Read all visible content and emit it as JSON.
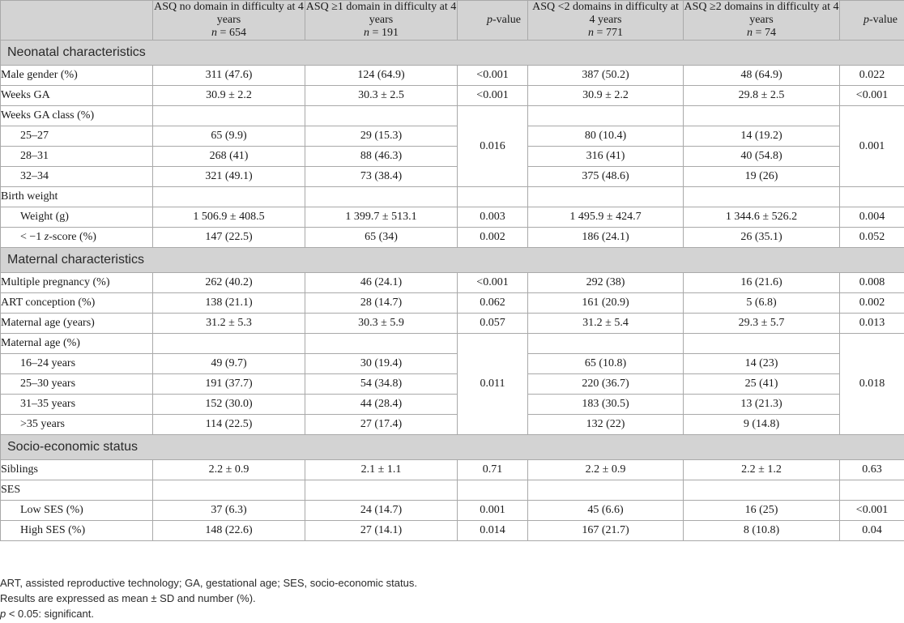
{
  "header": {
    "col_label": "",
    "g1": {
      "line1": "ASQ no domain in difficulty at 4 years",
      "n_label": "n",
      "n_value": " = 654"
    },
    "g2": {
      "line1": "ASQ ≥1 domain in difficulty at 4 years",
      "n_label": "n",
      "n_value": " = 191"
    },
    "p1": {
      "italic": "p",
      "rest": "-value"
    },
    "g3": {
      "line1": "ASQ <2 domains in difficulty at 4 years",
      "n_label": "n",
      "n_value": " = 771"
    },
    "g4": {
      "line1": "ASQ ≥2 domains in difficulty at 4 years",
      "n_label": "n",
      "n_value": " = 74"
    },
    "p2": {
      "italic": "p",
      "rest": "-value"
    }
  },
  "sections": {
    "neonatal": "Neonatal characteristics",
    "maternal": "Maternal characteristics",
    "ses": "Socio-economic status"
  },
  "rows": {
    "male": {
      "label": "Male gender (%)",
      "v": [
        "311 (47.6)",
        "124 (64.9)",
        "<0.001",
        "387 (50.2)",
        "48 (64.9)",
        "0.022"
      ]
    },
    "weeks_ga": {
      "label": "Weeks GA",
      "v": [
        "30.9 ± 2.2",
        "30.3 ± 2.5",
        "<0.001",
        "30.9 ± 2.2",
        "29.8 ± 2.5",
        "<0.001"
      ]
    },
    "ga_class": {
      "label": "Weeks GA class (%)",
      "p1": "0.016",
      "p2": "0.001"
    },
    "ga_25": {
      "label": "25–27",
      "v": [
        "65 (9.9)",
        "29 (15.3)",
        "80 (10.4)",
        "14 (19.2)"
      ]
    },
    "ga_28": {
      "label": "28–31",
      "v": [
        "268 (41)",
        "88 (46.3)",
        "316 (41)",
        "40 (54.8)"
      ]
    },
    "ga_32": {
      "label": "32–34",
      "v": [
        "321 (49.1)",
        "73 (38.4)",
        "375 (48.6)",
        "19 (26)"
      ]
    },
    "bw": {
      "label": "Birth weight"
    },
    "weight": {
      "label": "Weight (g)",
      "v": [
        "1 506.9 ± 408.5",
        "1 399.7 ± 513.1",
        "0.003",
        "1 495.9 ± 424.7",
        "1 344.6 ± 526.2",
        "0.004"
      ]
    },
    "zscore": {
      "label_pre": "< −1 ",
      "label_italic": "z",
      "label_post": "-score (%)",
      "v": [
        "147 (22.5)",
        "65 (34)",
        "0.002",
        "186 (24.1)",
        "26 (35.1)",
        "0.052"
      ]
    },
    "multiple": {
      "label": "Multiple pregnancy (%)",
      "v": [
        "262 (40.2)",
        "46 (24.1)",
        "<0.001",
        "292 (38)",
        "16 (21.6)",
        "0.008"
      ]
    },
    "art": {
      "label": "ART conception (%)",
      "v": [
        "138 (21.1)",
        "28 (14.7)",
        "0.062",
        "161 (20.9)",
        "5 (6.8)",
        "0.002"
      ]
    },
    "mat_age_y": {
      "label": "Maternal age (years)",
      "v": [
        "31.2 ± 5.3",
        "30.3 ± 5.9",
        "0.057",
        "31.2 ± 5.4",
        "29.3 ± 5.7",
        "0.013"
      ]
    },
    "mat_age_pct": {
      "label": "Maternal age (%)",
      "p1": "0.011",
      "p2": "0.018"
    },
    "age_16": {
      "label": "16–24 years",
      "v": [
        "49 (9.7)",
        "30 (19.4)",
        "65 (10.8)",
        "14 (23)"
      ]
    },
    "age_25": {
      "label": "25–30 years",
      "v": [
        "191 (37.7)",
        "54 (34.8)",
        "220 (36.7)",
        "25 (41)"
      ]
    },
    "age_31": {
      "label": "31–35 years",
      "v": [
        "152 (30.0)",
        "44 (28.4)",
        "183 (30.5)",
        "13 (21.3)"
      ]
    },
    "age_35": {
      "label": ">35 years",
      "v": [
        "114 (22.5)",
        "27 (17.4)",
        "132 (22)",
        "9 (14.8)"
      ]
    },
    "siblings": {
      "label": "Siblings",
      "v": [
        "2.2 ± 0.9",
        "2.1 ± 1.1",
        "0.71",
        "2.2 ± 0.9",
        "2.2 ± 1.2",
        "0.63"
      ]
    },
    "ses": {
      "label": "SES"
    },
    "low_ses": {
      "label": "Low SES (%)",
      "v": [
        "37 (6.3)",
        "24 (14.7)",
        "0.001",
        "45 (6.6)",
        "16 (25)",
        "<0.001"
      ]
    },
    "high_ses": {
      "label": "High SES (%)",
      "v": [
        "148 (22.6)",
        "27 (14.1)",
        "0.014",
        "167 (21.7)",
        "8 (10.8)",
        "0.04"
      ]
    }
  },
  "notes": {
    "abbrev": "ART, assisted reproductive technology; GA, gestational age; SES, socio-economic status.",
    "results": "Results are expressed as mean ± SD and number (%).",
    "sig_italic": "p",
    "sig_rest": " < 0.05: significant."
  }
}
